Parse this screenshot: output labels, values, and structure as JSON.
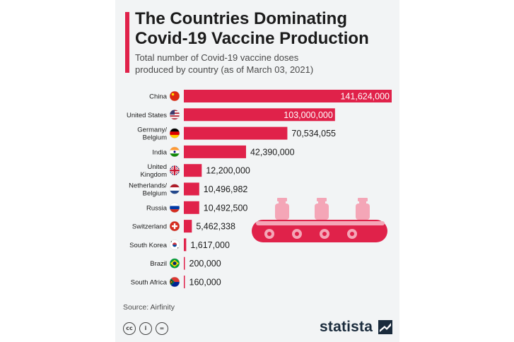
{
  "header": {
    "title_line1": "The Countries Dominating",
    "title_line2": "Covid-19 Vaccine Production",
    "subtitle_line1": "Total number of Covid-19 vaccine doses",
    "subtitle_line2": "produced by country (as of March 03, 2021)"
  },
  "colors": {
    "accent": "#e0224a",
    "bar": "#e0224a",
    "background": "#f2f4f5",
    "text": "#1b1b1b"
  },
  "chart_data": {
    "type": "bar",
    "orientation": "horizontal",
    "categories": [
      "China",
      "United States",
      "Germany/ Belgium",
      "India",
      "United Kingdom",
      "Netherlands/ Belgium",
      "Russia",
      "Switzerland",
      "South Korea",
      "Brazil",
      "South Africa"
    ],
    "values": [
      141624000,
      103000000,
      70534055,
      42390000,
      12200000,
      10496982,
      10492500,
      5462338,
      1617000,
      200000,
      160000
    ],
    "value_labels": [
      "141,624,000",
      "103,000,000",
      "70,534,055",
      "42,390,000",
      "12,200,000",
      "10,496,982",
      "10,492,500",
      "5,462,338",
      "1,617,000",
      "200,000",
      "160,000"
    ],
    "flag_icons": [
      "china-flag-icon",
      "usa-flag-icon",
      "germany-belgium-flag-icon",
      "india-flag-icon",
      "uk-flag-icon",
      "netherlands-belgium-flag-icon",
      "russia-flag-icon",
      "switzerland-flag-icon",
      "south-korea-flag-icon",
      "brazil-flag-icon",
      "south-africa-flag-icon"
    ],
    "xlim": [
      0,
      141624000
    ],
    "grid": false,
    "legend": "none"
  },
  "footer": {
    "source": "Source: Airfinity",
    "license_icons": [
      "cc-icon",
      "by-icon",
      "nd-icon"
    ],
    "brand": "statista"
  }
}
